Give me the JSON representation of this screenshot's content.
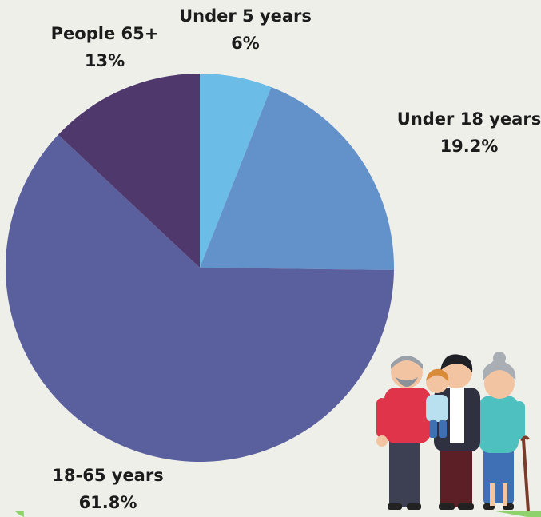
{
  "chart_data": {
    "type": "pie",
    "slices": [
      {
        "category": "Under 5 years",
        "percent_text": "6%",
        "value": 6,
        "color": "#6bbde8"
      },
      {
        "category": "Under 18 years",
        "percent_text": "19.2%",
        "value": 19.2,
        "color": "#6292c9"
      },
      {
        "category": "18-65 years",
        "percent_text": "61.8%",
        "value": 61.8,
        "color": "#5a5f9e"
      },
      {
        "category": "People 65+",
        "percent_text": "13%",
        "value": 13,
        "color": "#4e386c"
      }
    ]
  },
  "colors": {
    "background_panel": "#efefea",
    "background_accent": "#8fd16a"
  },
  "illustration": {
    "icon": "family-generations-illustration"
  }
}
